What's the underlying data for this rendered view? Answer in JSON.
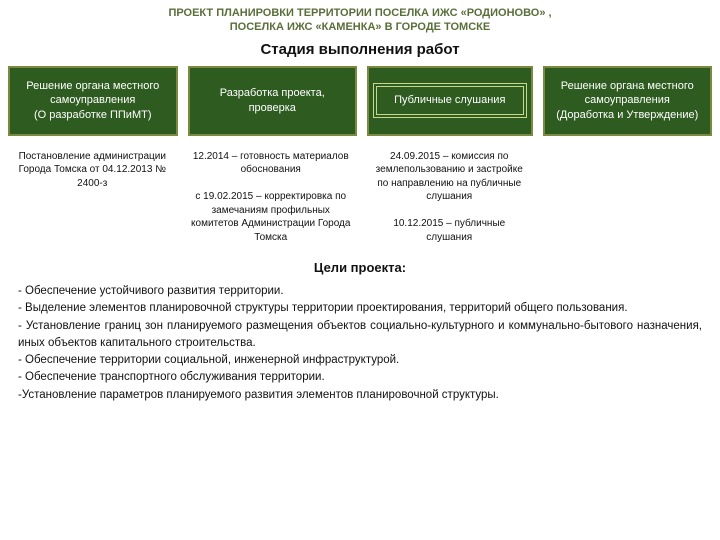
{
  "header": {
    "line1": "ПРОЕКТ ПЛАНИРОВКИ ТЕРРИТОРИИ ПОСЕЛКА ИЖС «РОДИОНОВО» ,",
    "line2": "ПОСЕЛКА ИЖС «КАМЕНКА» В ГОРОДЕ ТОМСКЕ"
  },
  "stages_title": "Стадия выполнения работ",
  "stages": [
    {
      "top": "Решение органа местного самоуправления",
      "bottom": "(О разработке ППиМТ)"
    },
    {
      "top": "Разработка проекта,",
      "bottom": "проверка"
    },
    {
      "top": "Публичные слушания",
      "bottom": ""
    },
    {
      "top": "Решение органа местного самоуправления",
      "bottom": "(Доработка и Утверждение)"
    }
  ],
  "details": [
    "Постановление администрации Города Томска от 04.12.2013 № 2400-з",
    "12.2014 – готовность материалов обоснования\n\nс 19.02.2015 – корректировка по замечаниям профильных комитетов Администрации Города Томска",
    "24.09.2015 – комиссия по землепользованию и застройке по направлению на публичные слушания\n\n10.12.2015 – публичные слушания",
    ""
  ],
  "goals_title": "Цели проекта:",
  "goals": [
    "- Обеспечение устойчивого развития территории.",
    "- Выделение элементов планировочной структуры территории проектирования, территорий общего пользования.",
    "- Установление границ зон планируемого размещения объектов социально-культурного и коммунально-бытового назначения, иных объектов капитального строительства.",
    "- Обеспечение территории социальной, инженерной инфраструктурой.",
    "- Обеспечение транспортного обслуживания территории.",
    "-Установление   параметров  планируемого   развития  элементов  планировочной структуры."
  ],
  "colors": {
    "header_text": "#5a6e3a",
    "box_bg": "#2e5b1f",
    "box_border": "#7a8a3e",
    "inner_border": "#c8d88a"
  }
}
